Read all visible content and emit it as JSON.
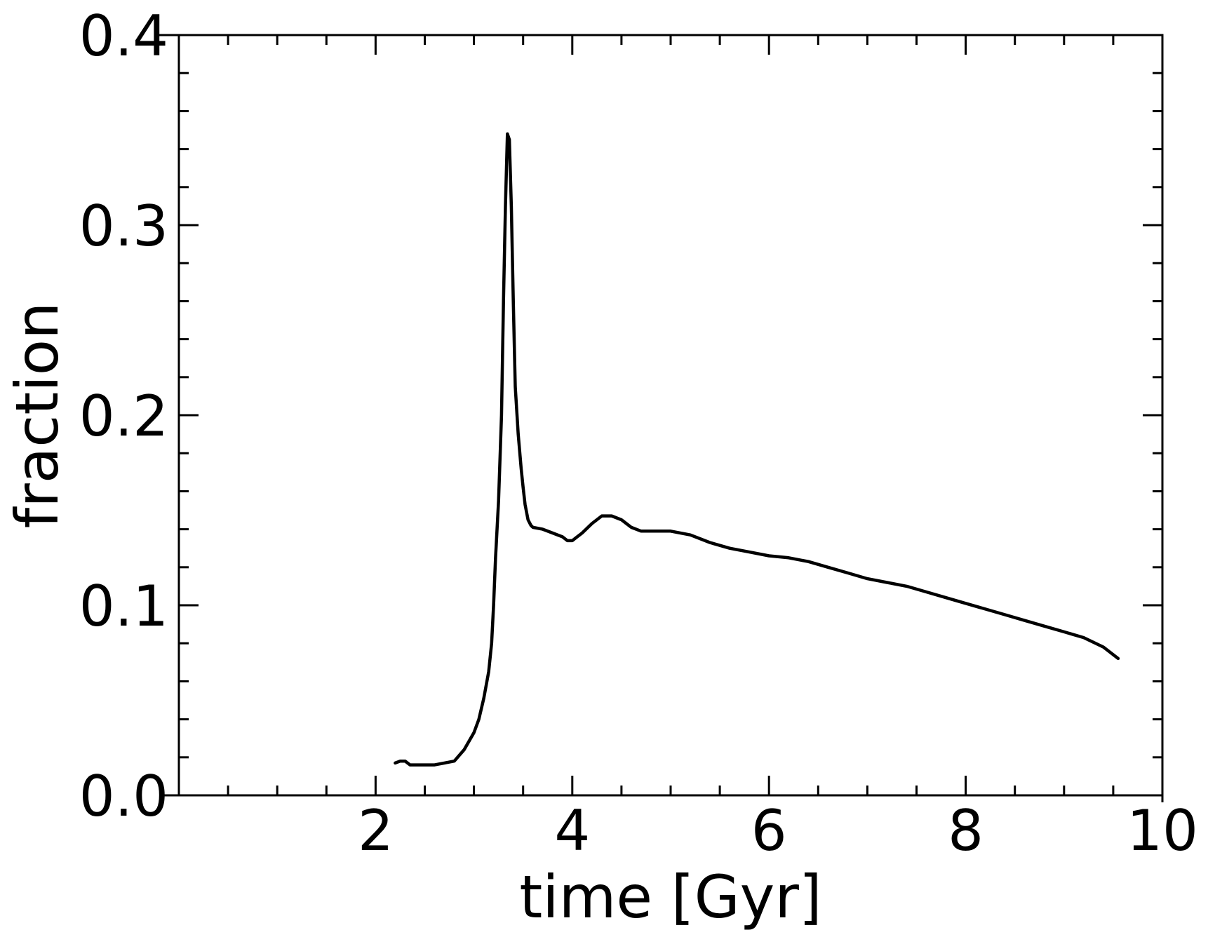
{
  "chart_data": {
    "type": "line",
    "title": "",
    "xlabel": "time [Gyr]",
    "ylabel": "fraction",
    "xlim": [
      0,
      10
    ],
    "ylim": [
      0.0,
      0.4
    ],
    "x_ticks": [
      2,
      4,
      6,
      8,
      10
    ],
    "x_tick_labels": [
      "2",
      "4",
      "6",
      "8",
      "10"
    ],
    "y_ticks": [
      0.0,
      0.1,
      0.2,
      0.3,
      0.4
    ],
    "y_tick_labels": [
      "0.0",
      "0.1",
      "0.2",
      "0.3",
      "0.4"
    ],
    "grid": false,
    "line_color": "#000000",
    "series": [
      {
        "x": [
          2.2,
          2.25,
          2.3,
          2.35,
          2.4,
          2.5,
          2.6,
          2.7,
          2.8,
          2.9,
          3.0,
          3.05,
          3.1,
          3.15,
          3.18,
          3.2,
          3.22,
          3.25,
          3.28,
          3.3,
          3.32,
          3.34,
          3.36,
          3.38,
          3.4,
          3.42,
          3.45,
          3.48,
          3.5,
          3.52,
          3.55,
          3.58,
          3.6,
          3.7,
          3.8,
          3.9,
          3.95,
          4.0,
          4.05,
          4.1,
          4.2,
          4.3,
          4.4,
          4.5,
          4.6,
          4.7,
          4.8,
          4.9,
          5.0,
          5.2,
          5.4,
          5.6,
          5.8,
          6.0,
          6.2,
          6.4,
          6.6,
          6.8,
          7.0,
          7.2,
          7.4,
          7.6,
          7.8,
          8.0,
          8.2,
          8.4,
          8.6,
          8.8,
          9.0,
          9.2,
          9.4,
          9.55
        ],
        "y": [
          0.017,
          0.018,
          0.018,
          0.016,
          0.016,
          0.016,
          0.016,
          0.017,
          0.018,
          0.024,
          0.033,
          0.04,
          0.051,
          0.065,
          0.08,
          0.1,
          0.125,
          0.155,
          0.2,
          0.26,
          0.31,
          0.348,
          0.345,
          0.31,
          0.26,
          0.215,
          0.19,
          0.172,
          0.162,
          0.153,
          0.145,
          0.142,
          0.141,
          0.14,
          0.138,
          0.136,
          0.134,
          0.134,
          0.136,
          0.138,
          0.143,
          0.147,
          0.147,
          0.145,
          0.141,
          0.139,
          0.139,
          0.139,
          0.139,
          0.137,
          0.133,
          0.13,
          0.128,
          0.126,
          0.125,
          0.123,
          0.12,
          0.117,
          0.114,
          0.112,
          0.11,
          0.107,
          0.104,
          0.101,
          0.098,
          0.095,
          0.092,
          0.089,
          0.086,
          0.083,
          0.078,
          0.072
        ]
      }
    ]
  }
}
